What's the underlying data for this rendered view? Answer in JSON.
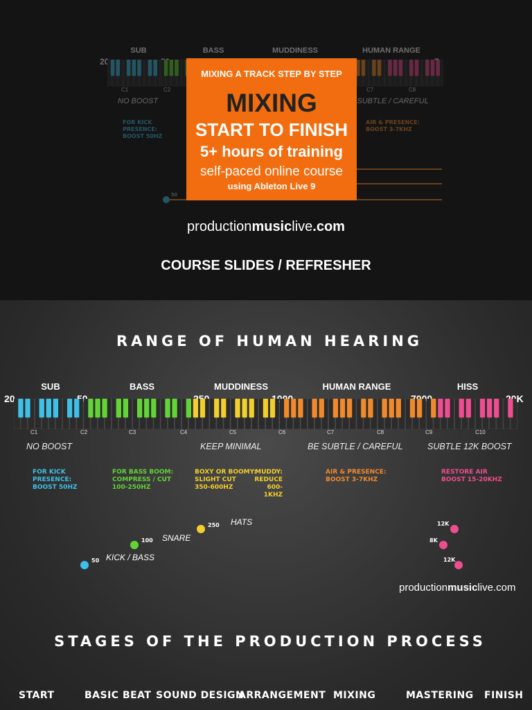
{
  "course": {
    "banner_top": "MIXING A TRACK STEP BY STEP",
    "banner_title": "MIXING",
    "banner_subtitle": "START TO FINISH",
    "banner_hours": "5+ hours of training",
    "banner_selfpaced": "self-paced online course",
    "banner_using": "using Ableton Live 9",
    "site_plain1": "production",
    "site_bold": "music",
    "site_plain2": "live",
    "site_tld": ".com",
    "slides_label": "COURSE SLIDES / REFRESHER"
  },
  "hearing": {
    "title": "RANGE OF HUMAN HEARING",
    "bands": [
      "SUB",
      "BASS",
      "MUDDINESS",
      "HUMAN RANGE",
      "HISS"
    ],
    "freqs": [
      "20",
      "50",
      "250",
      "1000",
      "7000",
      "20K"
    ],
    "octaves": [
      "C1",
      "C2",
      "C3",
      "C4",
      "C5",
      "C6",
      "C7",
      "C8",
      "C9",
      "C10"
    ],
    "descs": [
      "NO BOOST",
      "KEEP MINIMAL",
      "BE SUBTLE / CAREFUL",
      "SUBTLE 12K BOOST"
    ],
    "tips": {
      "kick": [
        "FOR KICK",
        "PRESENCE:",
        "BOOST 50HZ"
      ],
      "bass": [
        "FOR BASS BOOM:",
        "COMPRESS / CUT",
        "100-250HZ"
      ],
      "boxy": [
        "BOXY OR BOOMY:",
        "SLIGHT CUT",
        "350-600HZ"
      ],
      "muddy": [
        "MUDDY:",
        "REDUCE",
        "600-1KHZ"
      ],
      "air": [
        "AIR & PRESENCE:",
        "BOOST 3-7KHZ"
      ],
      "restore": [
        "RESTORE AIR",
        "BOOST 15-20KHZ"
      ]
    },
    "ranges": [
      {
        "name": "HATS",
        "start": "250",
        "end": "12K"
      },
      {
        "name": "SNARE",
        "start": "100",
        "end": "8K"
      },
      {
        "name": "KICK / BASS",
        "start": "50",
        "end": "12K"
      }
    ],
    "colors": {
      "sub": "#3fc0e8",
      "bass": "#63d438",
      "mud": "#f2cf2c",
      "human": "#f18a2c",
      "hiss": "#ee4d8f",
      "banner": "#f26d0f"
    }
  },
  "stages": {
    "title": "STAGES OF THE PRODUCTION PROCESS",
    "items": [
      "START",
      "BASIC BEAT",
      "SOUND DESIGN",
      "ARRANGEMENT",
      "MIXING",
      "MASTERING",
      "FINISH"
    ]
  }
}
